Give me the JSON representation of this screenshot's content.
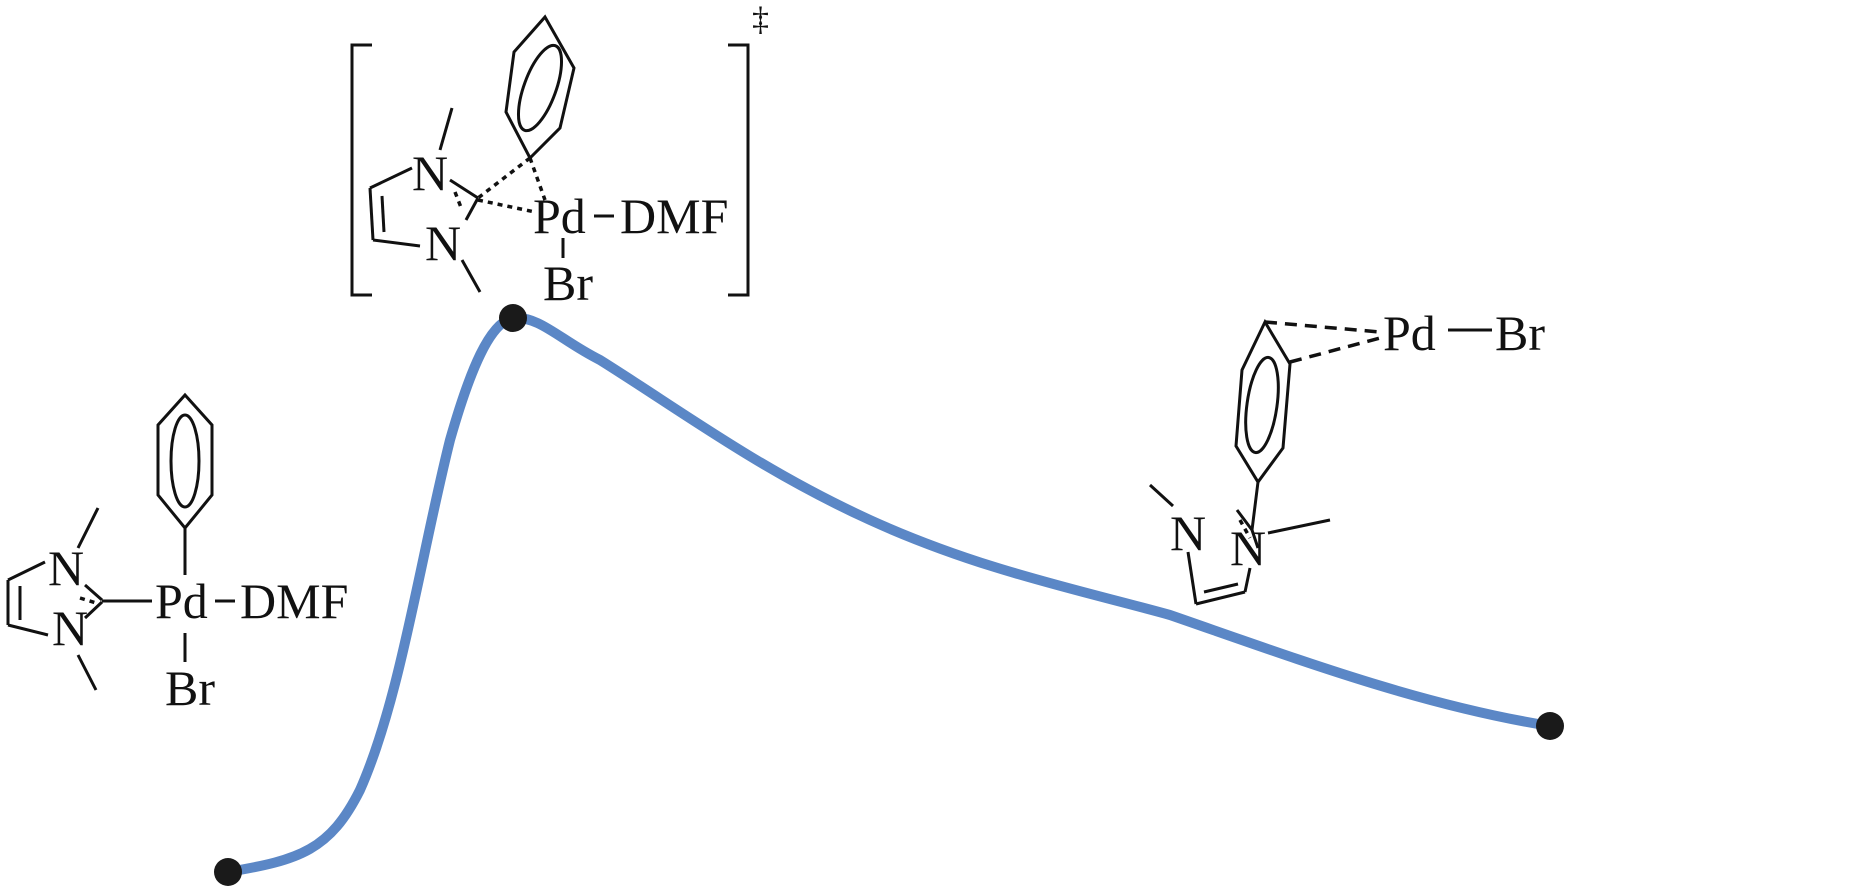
{
  "diagram": {
    "type": "reaction-energy-profile",
    "curve_color": "#5b87c6",
    "point_color": "#1a1a1a",
    "reactant": {
      "metal": "Pd",
      "ligand": "DMF",
      "halide": "Br",
      "atom_n_top": "N",
      "atom_n_bottom": "N"
    },
    "transition_state": {
      "metal": "Pd",
      "ligand": "DMF",
      "halide": "Br",
      "atom_n_top": "N",
      "atom_n_bottom": "N",
      "marker": "‡"
    },
    "product": {
      "metal": "Pd",
      "halide": "Br",
      "atom_n_left": "N",
      "atom_n_right": "N"
    },
    "points": [
      "reactant",
      "transition-state",
      "product"
    ]
  }
}
